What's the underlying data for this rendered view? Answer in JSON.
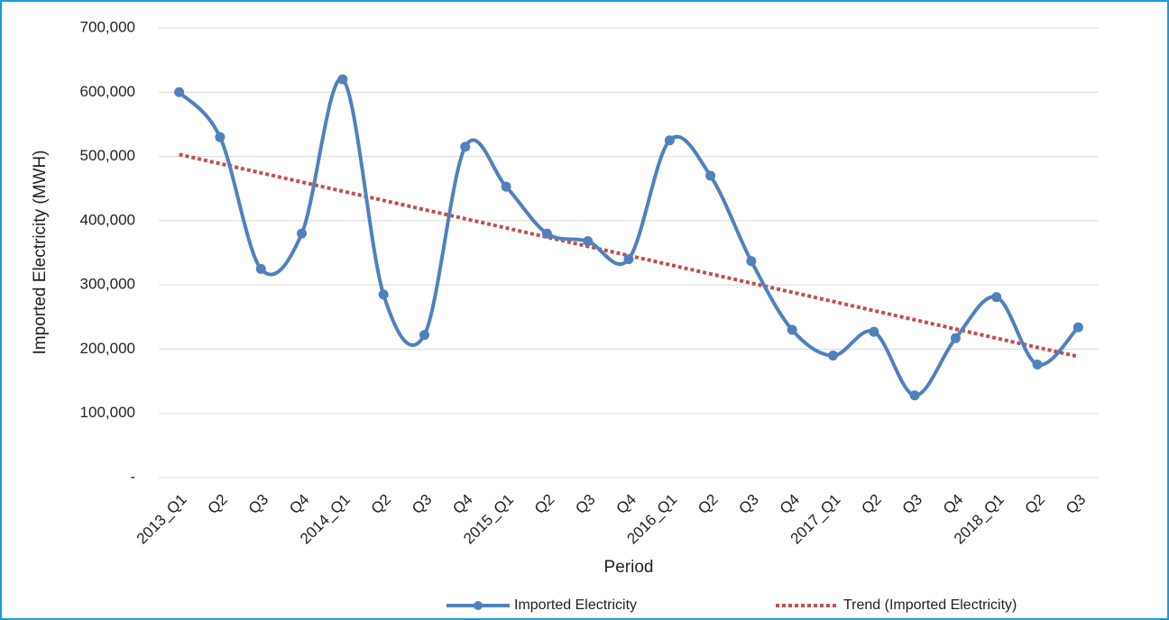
{
  "chart_data": {
    "type": "line",
    "x_label": "Period",
    "y_label": "Imported Electricity (MWH)",
    "categories": [
      "2013_Q1",
      "Q2",
      "Q3",
      "Q4",
      "2014_Q1",
      "Q2",
      "Q3",
      "Q4",
      "2015_Q1",
      "Q2",
      "Q3",
      "Q4",
      "2016_Q1",
      "Q2",
      "Q3",
      "Q4",
      "2017_Q1",
      "Q2",
      "Q3",
      "Q4",
      "2018_Q1",
      "Q2",
      "Q3"
    ],
    "series": [
      {
        "name": "Imported Electricity",
        "color": "#4f81bd",
        "smooth": true,
        "markers": true,
        "values": [
          600000,
          530000,
          325000,
          380000,
          620000,
          285000,
          222000,
          515000,
          453000,
          380000,
          368000,
          340000,
          525000,
          470000,
          337000,
          230000,
          190000,
          227000,
          128000,
          217000,
          281000,
          176000,
          234000
        ]
      },
      {
        "name": "Trend (Imported Electricity)",
        "color": "#c0504d",
        "dashed": true,
        "values": [
          503000,
          488700,
          474400,
          460100,
          445800,
          431500,
          417200,
          402900,
          388600,
          374300,
          360000,
          345700,
          331400,
          317100,
          302800,
          288500,
          274200,
          259900,
          245600,
          231300,
          217000,
          202700,
          188400
        ]
      }
    ],
    "ylim": [
      0,
      700000
    ],
    "yticks": [
      {
        "value": 0,
        "label": "-"
      },
      {
        "value": 100000,
        "label": "100,000"
      },
      {
        "value": 200000,
        "label": "200,000"
      },
      {
        "value": 300000,
        "label": "300,000"
      },
      {
        "value": 400000,
        "label": "400,000"
      },
      {
        "value": 500000,
        "label": "500,000"
      },
      {
        "value": 600000,
        "label": "600,000"
      },
      {
        "value": 700000,
        "label": "700,000"
      }
    ],
    "grid": true,
    "legend": "bottom"
  }
}
